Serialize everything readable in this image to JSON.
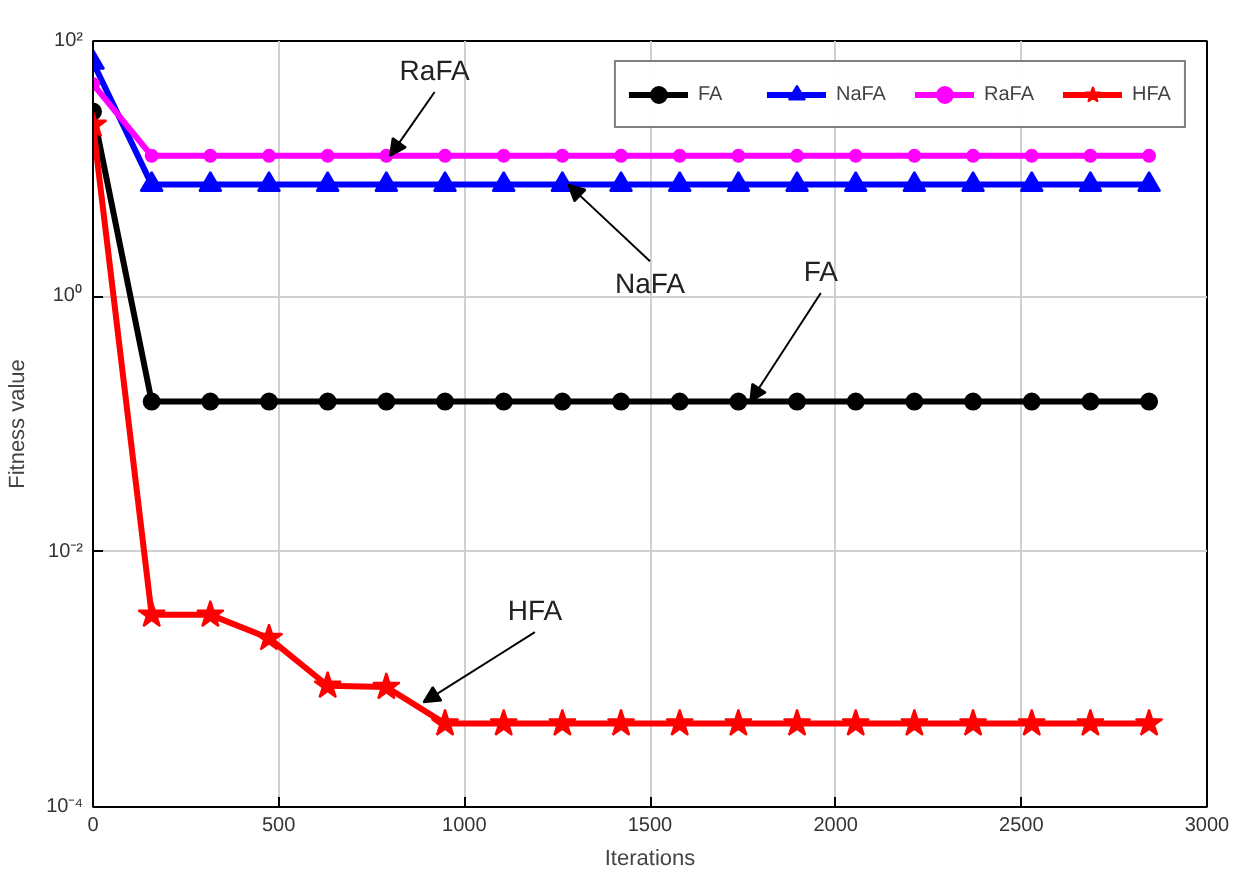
{
  "chart_data": {
    "type": "line",
    "xlabel": "Iterations",
    "ylabel": "Fitness value",
    "log": "y",
    "x": [
      0,
      158,
      316,
      474,
      632,
      790,
      948,
      1106,
      1264,
      1422,
      1580,
      1738,
      1896,
      2054,
      2212,
      2370,
      2528,
      2686,
      2844
    ],
    "xlim": [
      0,
      3000
    ],
    "xticks": [
      0,
      500,
      1000,
      1500,
      2000,
      2500,
      3000
    ],
    "ylim": [
      0.0001,
      100
    ],
    "yticks": [
      {
        "value": 0.0001,
        "label": "10⁻⁴"
      },
      {
        "value": 0.01,
        "label": "10⁻²"
      },
      {
        "value": 1,
        "label": "10⁰"
      },
      {
        "value": 100,
        "label": "10²"
      }
    ],
    "grid": true,
    "legend": "top right",
    "line_style": "solid",
    "series": [
      {
        "name": "FA",
        "color": "#000000",
        "marker": "circle",
        "values": [
          28,
          0.15,
          0.15,
          0.15,
          0.15,
          0.15,
          0.15,
          0.15,
          0.15,
          0.15,
          0.15,
          0.15,
          0.15,
          0.15,
          0.15,
          0.15,
          0.15,
          0.15,
          0.15
        ]
      },
      {
        "name": "NaFA",
        "color": "#0000ff",
        "marker": "triangle",
        "values": [
          68,
          7.5,
          7.5,
          7.5,
          7.5,
          7.5,
          7.5,
          7.5,
          7.5,
          7.5,
          7.5,
          7.5,
          7.5,
          7.5,
          7.5,
          7.5,
          7.5,
          7.5,
          7.5
        ]
      },
      {
        "name": "RaFA",
        "color": "#ff00ff",
        "marker": "circle",
        "values": [
          46,
          12.6,
          12.6,
          12.6,
          12.6,
          12.6,
          12.6,
          12.6,
          12.6,
          12.6,
          12.6,
          12.6,
          12.6,
          12.6,
          12.6,
          12.6,
          12.6,
          12.6,
          12.6
        ]
      },
      {
        "name": "HFA",
        "color": "#ff0000",
        "marker": "star",
        "values": [
          22,
          0.0032,
          0.0032,
          0.0021,
          0.00089,
          0.00087,
          0.00045,
          0.00045,
          0.00045,
          0.00045,
          0.00045,
          0.00045,
          0.00045,
          0.00045,
          0.00045,
          0.00045,
          0.00045,
          0.00045,
          0.00045
        ]
      }
    ],
    "annotations": [
      {
        "text": "RaFA",
        "x": 800,
        "y": 12.6
      },
      {
        "text": "NaFA",
        "x": 1280,
        "y": 7.5
      },
      {
        "text": "FA",
        "x": 1770,
        "y": 0.15
      },
      {
        "text": "HFA",
        "x": 890,
        "y": 0.00066
      }
    ]
  }
}
